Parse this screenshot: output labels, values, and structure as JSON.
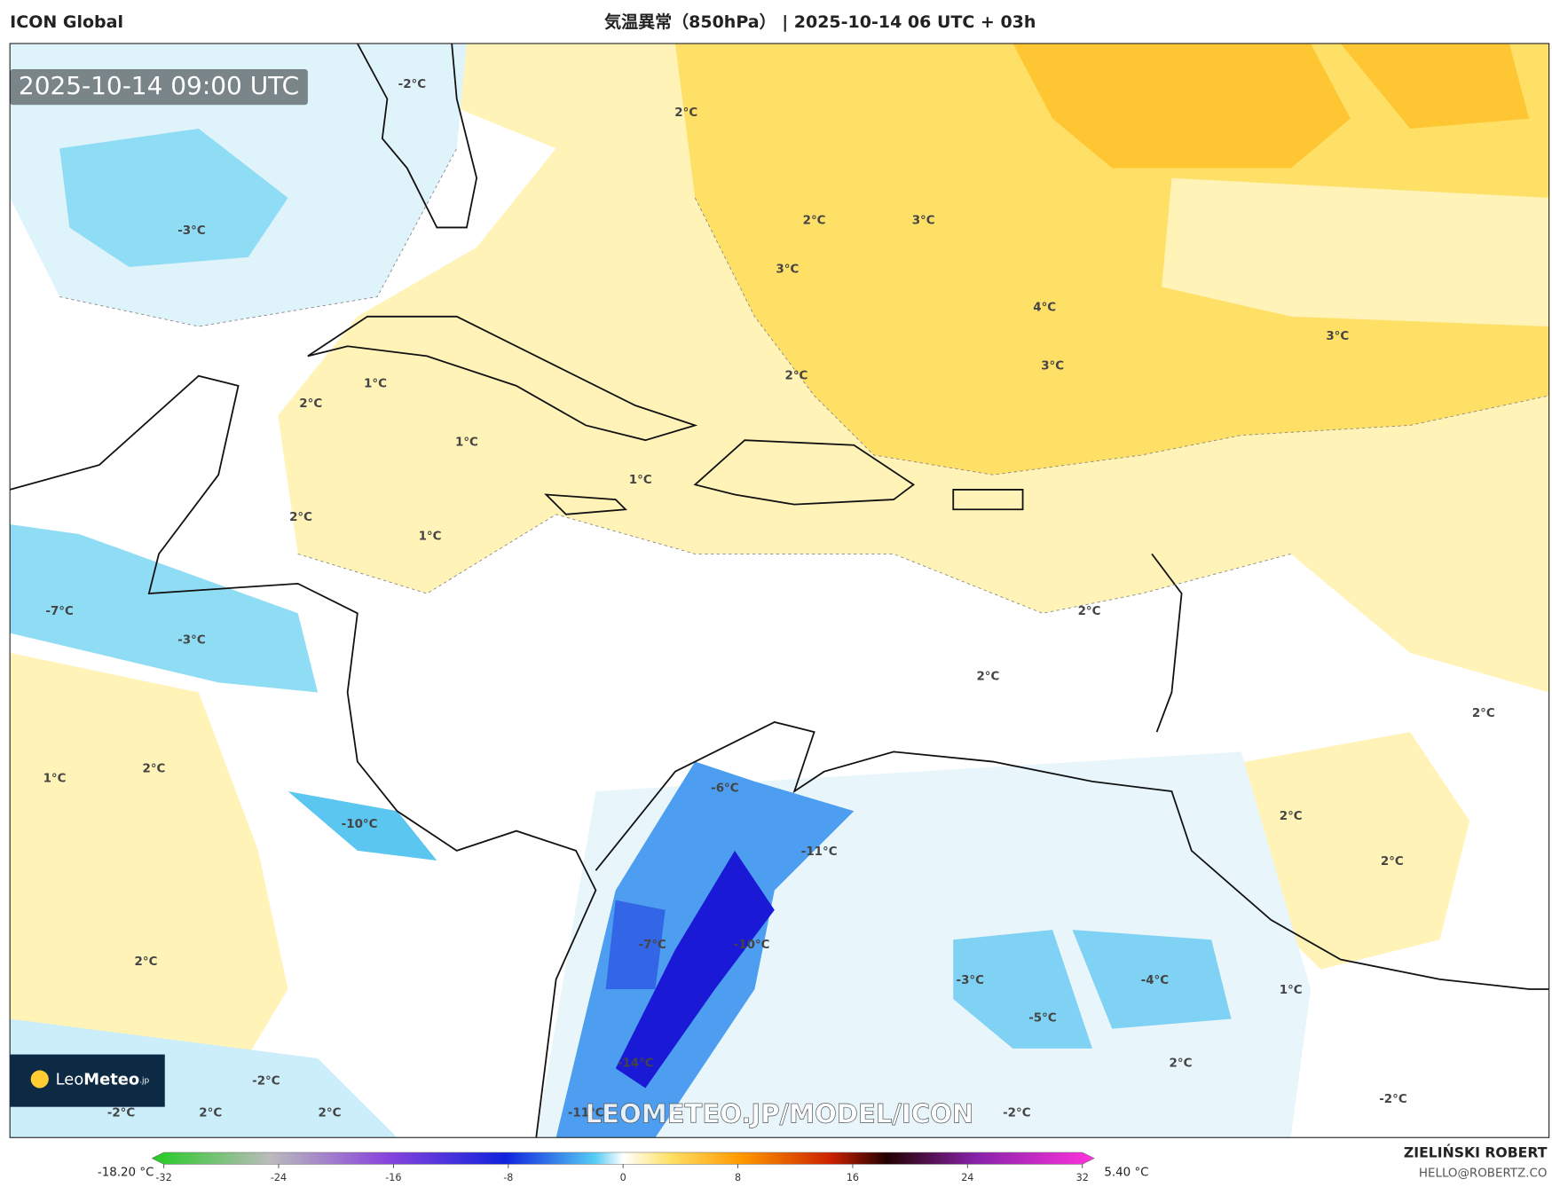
{
  "header": {
    "model": "ICON Global",
    "title": "気温異常（850hPa） | 2025-10-14 06 UTC + 03h"
  },
  "timestamp": "2025-10-14 09:00 UTC",
  "watermark": "LEOMETEO.JP/MODEL/ICON",
  "logo": {
    "name": "Leo",
    "name_bold": "Meteo",
    "suffix": ".jp"
  },
  "contour_labels": [
    "-2°C",
    "2°C",
    "-3°C",
    "2°C",
    "3°C",
    "3°C",
    "4°C",
    "3°C",
    "3°C",
    "2°C",
    "1°C",
    "2°C",
    "1°C",
    "1°C",
    "2°C",
    "1°C",
    "-7°C",
    "-3°C",
    "2°C",
    "2°C",
    "2°C",
    "1°C",
    "2°C",
    "-6°C",
    "-10°C",
    "2°C",
    "-11°C",
    "2°C",
    "-7°C",
    "-10°C",
    "2°C",
    "-3°C",
    "-4°C",
    "1°C",
    "-5°C",
    "-14°C",
    "2°C",
    "-2°C",
    "-2°C",
    "2°C",
    "2°C",
    "-11°C",
    "-2°C",
    "-2°C"
  ],
  "colorbar": {
    "min_label": "-18.20 °C",
    "max_label": "5.40 °C",
    "lim": [
      -32,
      32
    ],
    "ticks": [
      -32,
      -24,
      -16,
      -8,
      0,
      8,
      16,
      24,
      32
    ]
  },
  "author": {
    "name": "ZIELIŃSKI ROBERT",
    "email": "HELLO@ROBERTZ.CO"
  }
}
